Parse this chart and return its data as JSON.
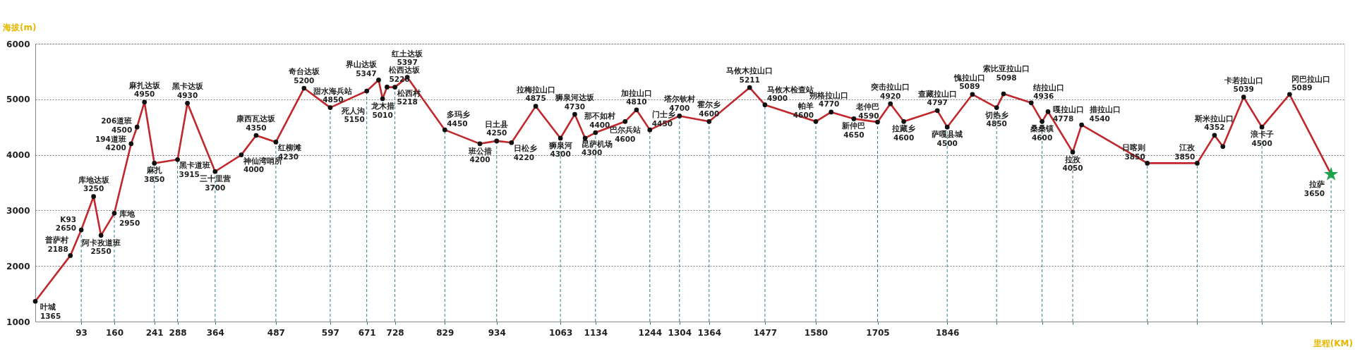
{
  "chart_data": {
    "type": "line",
    "xlabel": "里程(KM)",
    "ylabel": "海拔(m)",
    "xlim": [
      0,
      2650
    ],
    "ylim": [
      1000,
      6000
    ],
    "yticks": [
      1000,
      2000,
      3000,
      4000,
      5000,
      6000
    ],
    "xticks": [
      93,
      160,
      241,
      288,
      364,
      487,
      597,
      671,
      728,
      829,
      934,
      1063,
      1134,
      1244,
      1304,
      1364,
      1477,
      1580,
      1705,
      1846,
      {
        "value": 1946,
        "label": null
      },
      {
        "value": 2038,
        "label": null
      },
      {
        "value": 2100,
        "label": null
      },
      {
        "value": 2251,
        "label": null
      },
      {
        "value": 2352,
        "label": null
      },
      {
        "value": 2483,
        "label": null
      },
      {
        "value": 2623,
        "label": null
      }
    ],
    "grid": "y",
    "series": [
      {
        "color": "#c0282d",
        "marker": "none",
        "line_style": "solid",
        "x": [
          0,
          71,
          93,
          118,
          133,
          160,
          194,
          206,
          221,
          241,
          288,
          308,
          364,
          417,
          447,
          487,
          544,
          597,
          671,
          695,
          703,
          712,
          728,
          753,
          829,
          900,
          934,
          964,
          1013,
          1063,
          1092,
          1113,
          1134,
          1194,
          1217,
          1244,
          1304,
          1364,
          1446,
          1477,
          1580,
          1611,
          1657,
          1705,
          1731,
          1758,
          1826,
          1846,
          1897,
          1946,
          1960,
          2016,
          2038,
          2050,
          2100,
          2118,
          2251,
          2352,
          2387,
          2404,
          2446,
          2483,
          2539,
          2623
        ],
        "values": [
          1365,
          2188,
          2650,
          3250,
          2550,
          2950,
          4200,
          4500,
          4950,
          3850,
          3915,
          4930,
          3700,
          4000,
          4350,
          4230,
          5200,
          4850,
          5150,
          5347,
          5010,
          5220,
          5218,
          5397,
          4450,
          4200,
          4250,
          4220,
          4875,
          4300,
          4730,
          4300,
          4400,
          4600,
          4810,
          4450,
          4700,
          4600,
          5211,
          4900,
          4600,
          4770,
          4650,
          4590,
          4920,
          4600,
          4797,
          4500,
          5089,
          4850,
          5098,
          4936,
          4600,
          4778,
          4050,
          4540,
          3850,
          3850,
          4352,
          4150,
          5039,
          4500,
          5089,
          3650
        ],
        "value_labels": [
          "叶城\n1365",
          "普萨村\n2188",
          "K93\n2650",
          "库地达坂\n3250",
          "阿卡孜道班\n2550",
          "库地\n2950",
          "194道班\n4200",
          "206道班\n4500",
          "麻扎达坂\n4950",
          "麻扎\n3850",
          "黑卡道班\n3915",
          "黑卡达坂\n4930",
          "三十里营\n3700",
          "神仙湾哨所\n4000",
          "康西瓦达坂\n4350",
          "红柳滩\n4230",
          "奇台达坂\n5200",
          "甜水海兵站\n4850",
          "死人沟\n5150",
          "界山达坂\n5347",
          "龙木措\n5010",
          "松西达坂\n5220",
          "松西村\n5218",
          "红土达坂\n5397",
          "多玛乡\n4450",
          "班公措\n4200",
          "日土县\n4250",
          "日松乡\n4220",
          "拉梅拉山口\n4875",
          "狮泉河\n4300",
          "狮泉河达坂\n4730",
          "昆萨机场\n4300",
          "那不如村\n4400",
          "巴尔兵站\n4600",
          "加拉山口\n4810",
          "门士乡\n4450",
          "塔尔钦村\n4700",
          "霍尔乡\n4600",
          "马攸木拉山口\n5211",
          "马攸木检查站\n4900",
          "帕羊\n4600",
          "朔格拉山口\n4770",
          "新仲巴\n4650",
          "老仲巴\n4590",
          "突击拉山口\n4920",
          "拉藏乡\n4600",
          "查藏拉山口\n4797",
          "萨嘎县城\n4500",
          "愧拉山口\n5089",
          "切热乡\n4850",
          "索比亚拉山口\n5098",
          "结拉山口\n4936",
          "桑桑镇\n4600",
          "嘎拉山口\n4778",
          "拉孜\n4050",
          "措拉山口\n4540",
          "日喀则\n3850",
          "江孜\n3850",
          "斯米拉山口\n4352",
          null,
          "卡若拉山口\n5039",
          "浪卡子\n4500",
          "冈巴拉山口\n5089",
          "拉萨\n3650"
        ]
      },
      {
        "type": "scatter",
        "color": "#111111",
        "marker": "circle",
        "x": [
          0,
          71,
          93,
          118,
          133,
          160,
          194,
          206,
          221,
          241,
          288,
          308,
          364,
          417,
          447,
          487,
          544,
          597,
          671,
          695,
          703,
          712,
          728,
          753,
          829,
          900,
          934,
          964,
          1013,
          1063,
          1092,
          1113,
          1134,
          1194,
          1217,
          1244,
          1304,
          1364,
          1446,
          1477,
          1580,
          1611,
          1657,
          1705,
          1731,
          1758,
          1826,
          1846,
          1897,
          1946,
          1960,
          2016,
          2038,
          2050,
          2100,
          2118,
          2251,
          2352,
          2387,
          2404,
          2446,
          2483,
          2539
        ],
        "values": [
          1365,
          2188,
          2650,
          3250,
          2550,
          2950,
          4200,
          4500,
          4950,
          3850,
          3915,
          4930,
          3700,
          4000,
          4350,
          4230,
          5200,
          4850,
          5150,
          5347,
          5010,
          5220,
          5218,
          5397,
          4450,
          4200,
          4250,
          4220,
          4875,
          4300,
          4730,
          4300,
          4400,
          4600,
          4810,
          4450,
          4700,
          4600,
          5211,
          4900,
          4600,
          4770,
          4650,
          4590,
          4920,
          4600,
          4797,
          4500,
          5089,
          4850,
          5098,
          4936,
          4600,
          4778,
          4050,
          4540,
          3850,
          3850,
          4352,
          4150,
          5039,
          4500,
          5089
        ]
      },
      {
        "type": "scatter",
        "color": "#1aa34a",
        "marker": "star",
        "x": [
          2623
        ],
        "values": [
          3650
        ]
      }
    ],
    "ref_lines": [
      {
        "axis": "x",
        "value": 93,
        "color": "#2e7d8c",
        "line_style": "dashed"
      },
      {
        "axis": "x",
        "value": 160,
        "color": "#2e7d8c",
        "line_style": "dashed"
      },
      {
        "axis": "x",
        "value": 241,
        "color": "#2e7d8c",
        "line_style": "dashed"
      },
      {
        "axis": "x",
        "value": 288,
        "color": "#2e7d8c",
        "line_style": "dashed"
      },
      {
        "axis": "x",
        "value": 364,
        "color": "#2e7d8c",
        "line_style": "dashed"
      },
      {
        "axis": "x",
        "value": 487,
        "color": "#2e7d8c",
        "line_style": "dashed"
      },
      {
        "axis": "x",
        "value": 597,
        "color": "#2e7d8c",
        "line_style": "dashed"
      },
      {
        "axis": "x",
        "value": 671,
        "color": "#2e7d8c",
        "line_style": "dashed"
      },
      {
        "axis": "x",
        "value": 728,
        "color": "#2e7d8c",
        "line_style": "dashed"
      },
      {
        "axis": "x",
        "value": 829,
        "color": "#2e7d8c",
        "line_style": "dashed"
      },
      {
        "axis": "x",
        "value": 934,
        "color": "#2e7d8c",
        "line_style": "dashed"
      },
      {
        "axis": "x",
        "value": 1063,
        "color": "#2e7d8c",
        "line_style": "dashed"
      },
      {
        "axis": "x",
        "value": 1134,
        "color": "#2e7d8c",
        "line_style": "dashed"
      },
      {
        "axis": "x",
        "value": 1244,
        "color": "#2e7d8c",
        "line_style": "dashed"
      },
      {
        "axis": "x",
        "value": 1304,
        "color": "#2e7d8c",
        "line_style": "dashed"
      },
      {
        "axis": "x",
        "value": 1364,
        "color": "#2e7d8c",
        "line_style": "dashed"
      },
      {
        "axis": "x",
        "value": 1477,
        "color": "#2e7d8c",
        "line_style": "dashed"
      },
      {
        "axis": "x",
        "value": 1580,
        "color": "#2e7d8c",
        "line_style": "dashed"
      },
      {
        "axis": "x",
        "value": 1705,
        "color": "#2e7d8c",
        "line_style": "dashed"
      },
      {
        "axis": "x",
        "value": 1846,
        "color": "#2e7d8c",
        "line_style": "dashed"
      },
      {
        "axis": "x",
        "value": 1946,
        "color": "#2e7d8c",
        "line_style": "dashed"
      },
      {
        "axis": "x",
        "value": 2038,
        "color": "#2e7d8c",
        "line_style": "dashed"
      },
      {
        "axis": "x",
        "value": 2100,
        "color": "#2e7d8c",
        "line_style": "dashed"
      },
      {
        "axis": "x",
        "value": 2251,
        "color": "#2e7d8c",
        "line_style": "dashed"
      },
      {
        "axis": "x",
        "value": 2352,
        "color": "#2e7d8c",
        "line_style": "dashed"
      },
      {
        "axis": "x",
        "value": 2483,
        "color": "#2e7d8c",
        "line_style": "dashed"
      },
      {
        "axis": "x",
        "value": 2623,
        "color": "#2e7d8c",
        "line_style": "dashed"
      }
    ]
  }
}
